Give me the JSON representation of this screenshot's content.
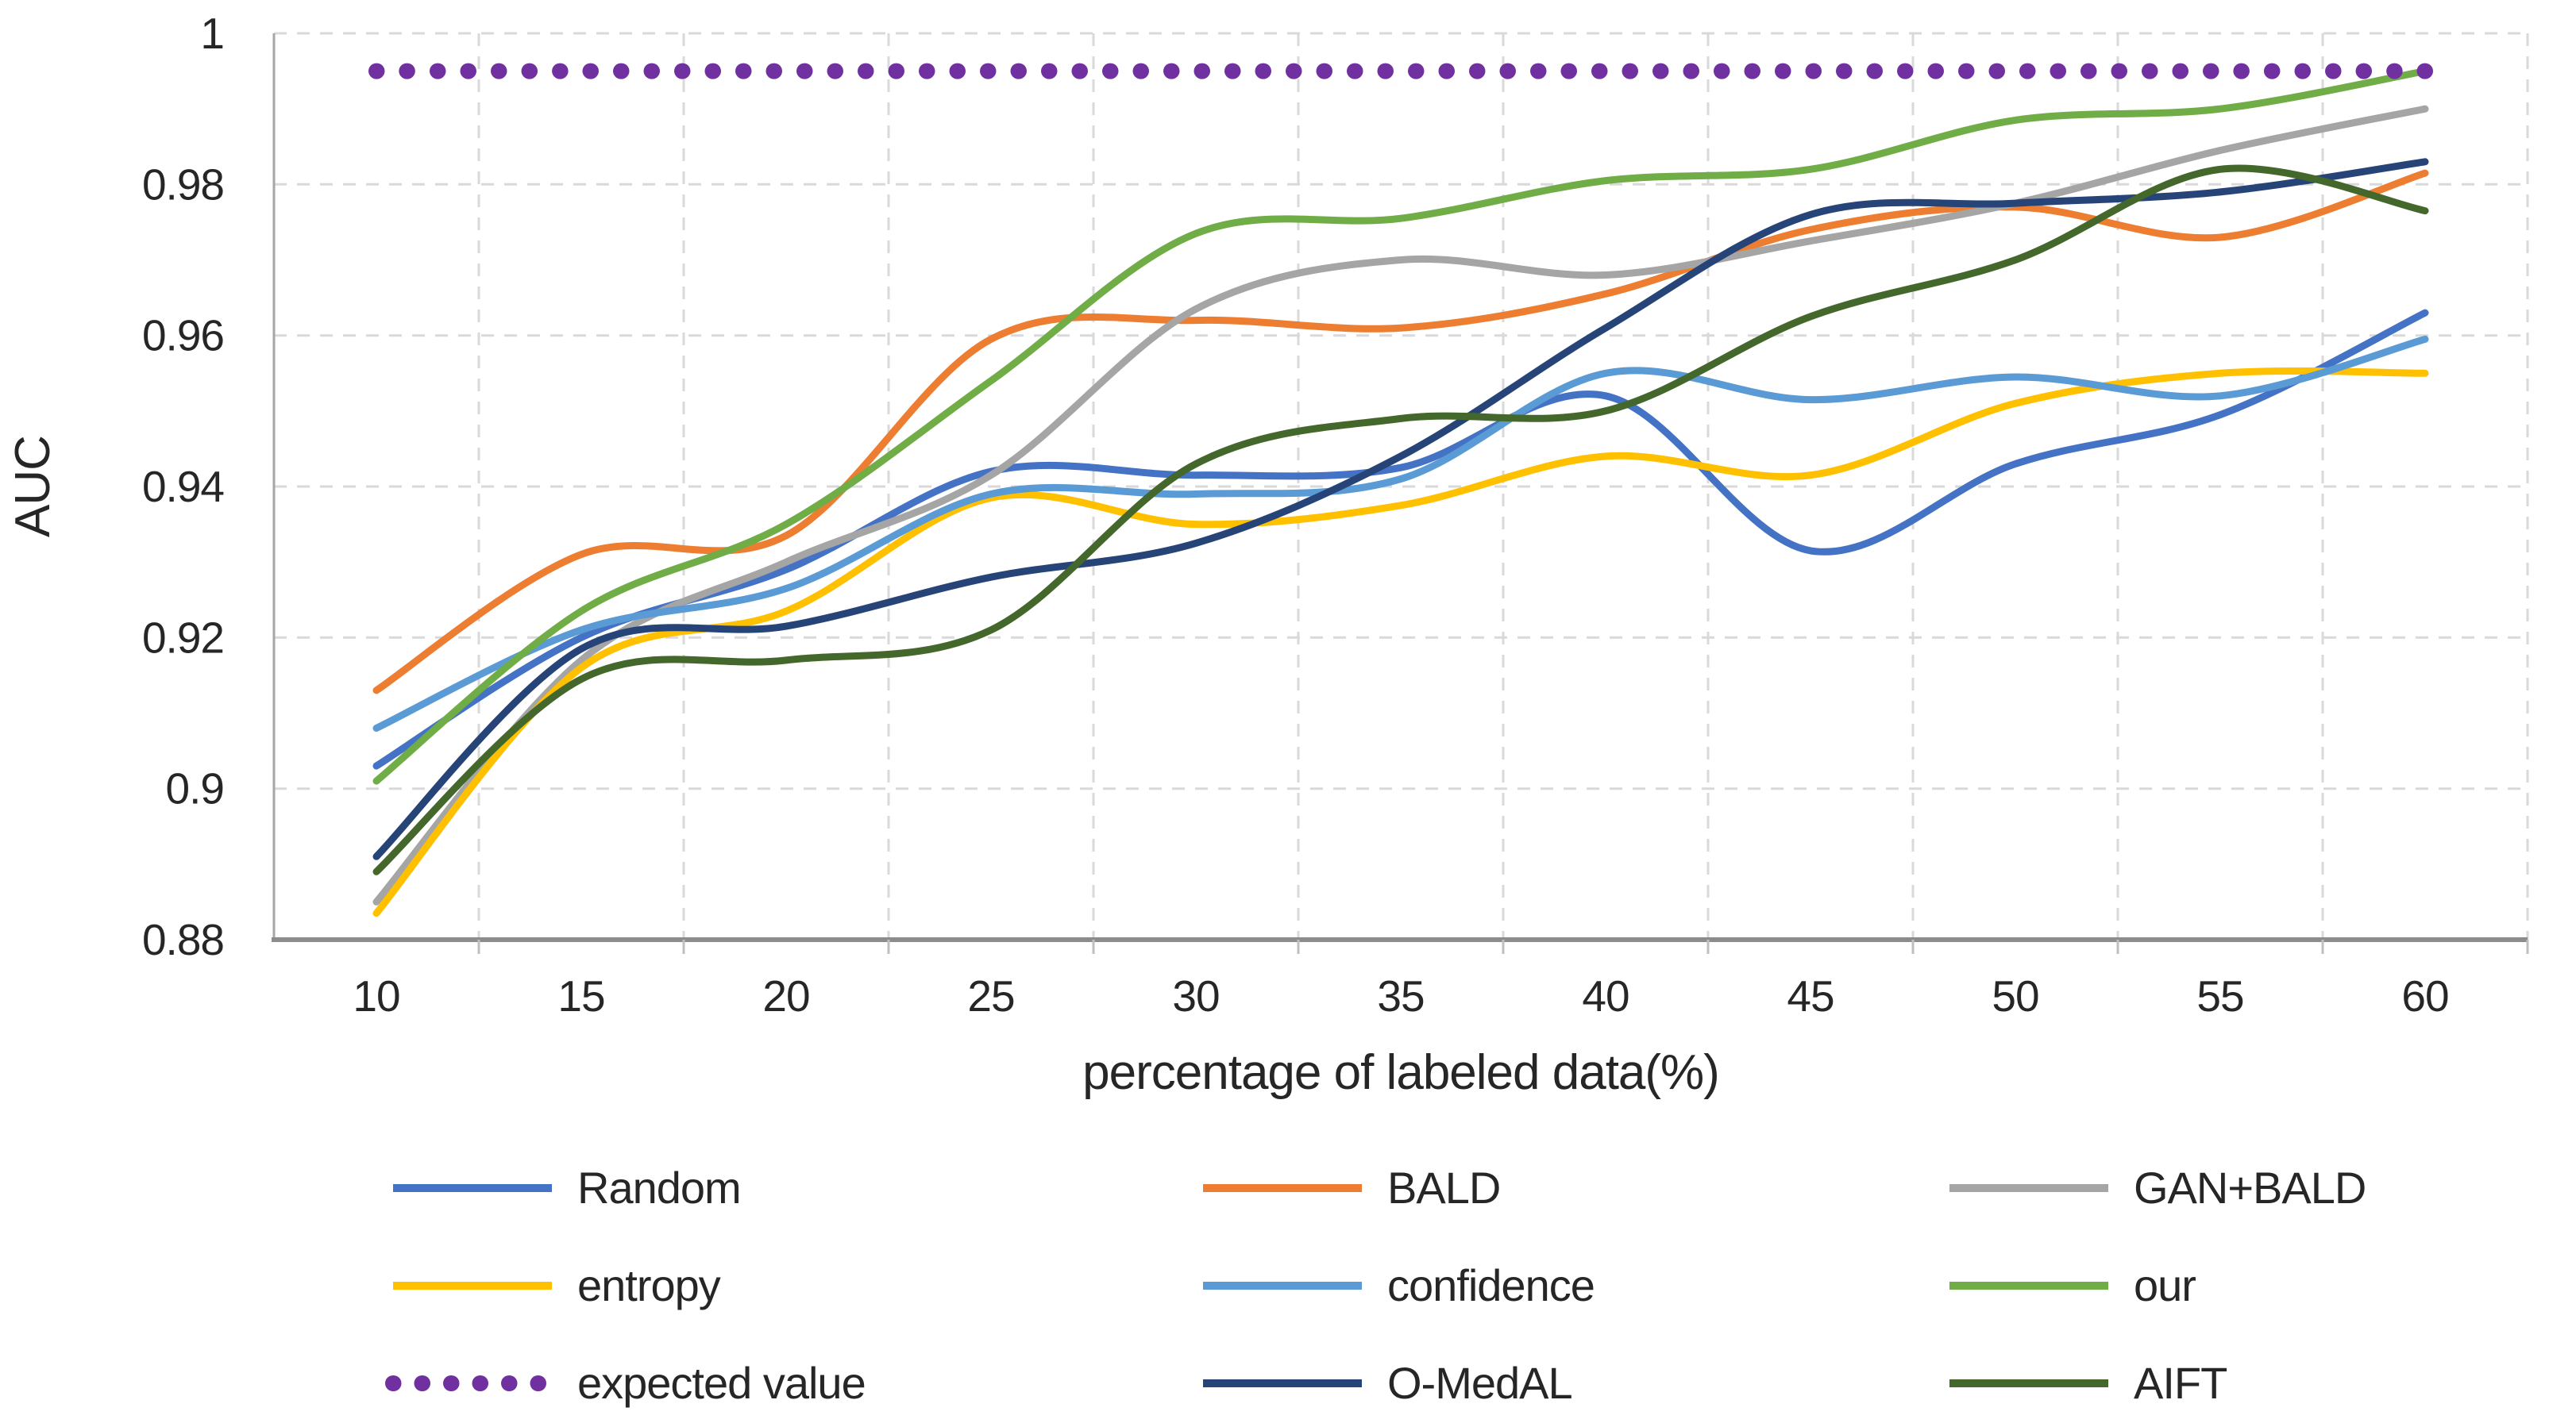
{
  "figure": {
    "background": "#ffffff",
    "axis_line_color": "#8c8c8c",
    "y_axis_line_color": "#a6a6a6",
    "grid_line_color": "#d9d9d9",
    "tick_mark_color": "#bfbfbf",
    "text_color": "#262626"
  },
  "chart_data": {
    "type": "line",
    "title": "",
    "xlabel": "percentage of labeled data(%)",
    "ylabel": "AUC",
    "x": [
      10,
      15,
      20,
      25,
      30,
      35,
      40,
      45,
      50,
      55,
      60
    ],
    "x_tick_labels": [
      "10",
      "15",
      "20",
      "25",
      "30",
      "35",
      "40",
      "45",
      "50",
      "55",
      "60"
    ],
    "ylim": [
      0.88,
      1.0
    ],
    "y_ticks": [
      {
        "value": 0.88,
        "label": "0.88"
      },
      {
        "value": 0.9,
        "label": "0.9"
      },
      {
        "value": 0.92,
        "label": "0.92"
      },
      {
        "value": 0.94,
        "label": "0.94"
      },
      {
        "value": 0.96,
        "label": "0.96"
      },
      {
        "value": 0.98,
        "label": "0.98"
      },
      {
        "value": 1.0,
        "label": "1"
      }
    ],
    "grid": "dashed",
    "legend_position": "bottom",
    "legend_columns": 3,
    "expected_value_level": 0.995,
    "series": [
      {
        "name": "Random",
        "color": "#4472C4",
        "style": "solid",
        "values": [
          0.903,
          0.92,
          0.929,
          0.942,
          0.9415,
          0.9425,
          0.952,
          0.9315,
          0.943,
          0.9495,
          0.963
        ]
      },
      {
        "name": "BALD",
        "color": "#ED7D31",
        "style": "solid",
        "values": [
          0.913,
          0.931,
          0.9335,
          0.9595,
          0.962,
          0.961,
          0.9655,
          0.974,
          0.977,
          0.973,
          0.9815
        ]
      },
      {
        "name": "GAN+BALD",
        "color": "#A5A5A5",
        "style": "solid",
        "values": [
          0.885,
          0.917,
          0.93,
          0.9415,
          0.9635,
          0.97,
          0.968,
          0.9725,
          0.9775,
          0.9845,
          0.99
        ]
      },
      {
        "name": "entropy",
        "color": "#FFC000",
        "style": "solid",
        "values": [
          0.8835,
          0.916,
          0.9235,
          0.9385,
          0.935,
          0.9375,
          0.944,
          0.9415,
          0.951,
          0.955,
          0.955
        ]
      },
      {
        "name": "confidence",
        "color": "#5B9BD5",
        "style": "solid",
        "values": [
          0.908,
          0.921,
          0.9265,
          0.939,
          0.939,
          0.941,
          0.955,
          0.9515,
          0.9545,
          0.952,
          0.9595
        ]
      },
      {
        "name": "our",
        "color": "#70AD47",
        "style": "solid",
        "values": [
          0.901,
          0.9235,
          0.935,
          0.954,
          0.9735,
          0.9755,
          0.9805,
          0.982,
          0.9885,
          0.99,
          0.995
        ]
      },
      {
        "name": "expected value",
        "color": "#7030A0",
        "style": "dotted",
        "values": [
          0.995,
          0.995,
          0.995,
          0.995,
          0.995,
          0.995,
          0.995,
          0.995,
          0.995,
          0.995,
          0.995
        ]
      },
      {
        "name": "O-MedAL",
        "color": "#264478",
        "style": "solid",
        "values": [
          0.891,
          0.9185,
          0.9215,
          0.928,
          0.9325,
          0.944,
          0.961,
          0.976,
          0.9775,
          0.979,
          0.983
        ]
      },
      {
        "name": "AIFT",
        "color": "#44682C",
        "style": "solid",
        "values": [
          0.889,
          0.9145,
          0.917,
          0.921,
          0.943,
          0.949,
          0.95,
          0.9625,
          0.97,
          0.982,
          0.9765
        ]
      }
    ]
  }
}
